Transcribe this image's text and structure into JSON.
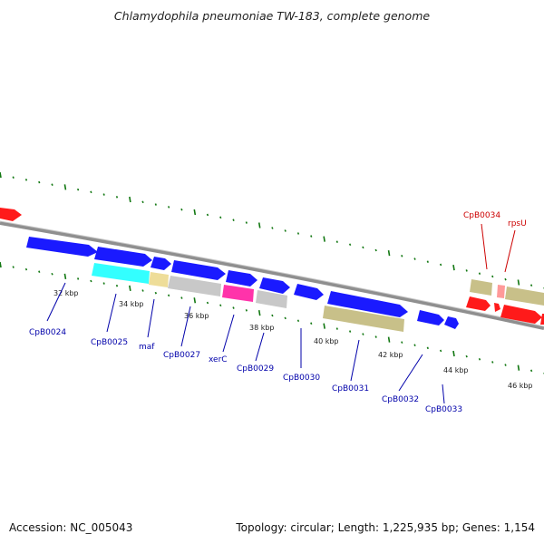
{
  "title": "Chlamydophila pneumoniae TW-183, complete genome",
  "footer": {
    "accession": "Accession: NC_005043",
    "summary": "Topology: circular; Length: 1,225,935 bp; Genes: 1,154"
  },
  "colors": {
    "forward": "#1a1aff",
    "forward_other": "#ff1a1a",
    "reverse_khaki": "#c8c089",
    "cyan": "#33ffff",
    "tan": "#eedd99",
    "gray": "#c8c8c8",
    "magenta": "#ff33aa",
    "pink": "#ff9999",
    "label_blue": "#0000aa",
    "label_red": "#cc0000",
    "tick_green": "#117711",
    "backbone": "#888888"
  },
  "scale_ticks": [
    {
      "label": "32 kbp"
    },
    {
      "label": "34 kbp"
    },
    {
      "label": "36 kbp"
    },
    {
      "label": "38 kbp"
    },
    {
      "label": "40 kbp"
    },
    {
      "label": "42 kbp"
    },
    {
      "label": "44 kbp"
    },
    {
      "label": "46 kbp"
    }
  ],
  "gene_labels": [
    {
      "text": "CpB0024",
      "color": "label_blue"
    },
    {
      "text": "CpB0025",
      "color": "label_blue"
    },
    {
      "text": "maf",
      "color": "label_blue"
    },
    {
      "text": "CpB0027",
      "color": "label_blue"
    },
    {
      "text": "xerC",
      "color": "label_blue"
    },
    {
      "text": "CpB0029",
      "color": "label_blue"
    },
    {
      "text": "CpB0030",
      "color": "label_blue"
    },
    {
      "text": "CpB0031",
      "color": "label_blue"
    },
    {
      "text": "CpB0032",
      "color": "label_blue"
    },
    {
      "text": "CpB0033",
      "color": "label_blue"
    },
    {
      "text": "CpB0034",
      "color": "label_red"
    },
    {
      "text": "rpsU",
      "color": "label_red"
    }
  ]
}
